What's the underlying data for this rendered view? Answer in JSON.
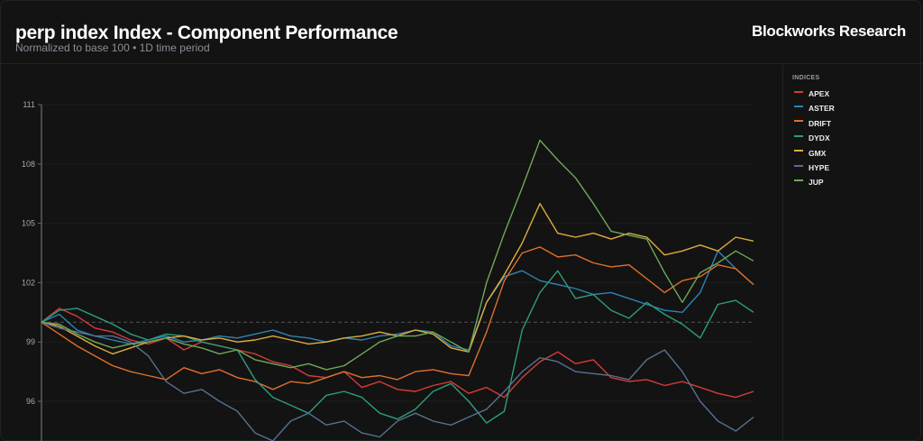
{
  "header": {
    "title": "perp index Index - Component Performance",
    "subtitle": "Normalized to base 100 • 1D time period",
    "brand": "Blockworks Research"
  },
  "legend": {
    "title": "INDICES",
    "items": [
      {
        "label": "APEX",
        "color": "#d63b3b"
      },
      {
        "label": "ASTER",
        "color": "#2f84b4"
      },
      {
        "label": "DRIFT",
        "color": "#e0702a"
      },
      {
        "label": "DYDX",
        "color": "#2e9e7a"
      },
      {
        "label": "GMX",
        "color": "#e0ac3c"
      },
      {
        "label": "HYPE",
        "color": "#56718f"
      },
      {
        "label": "JUP",
        "color": "#6ea85a"
      }
    ]
  },
  "chart_data": {
    "type": "line",
    "title": "perp index Index - Component Performance",
    "subtitle": "Normalized to base 100 • 1D time period",
    "xlabel": "",
    "ylabel": "",
    "yticks": [
      96,
      99,
      102,
      105,
      108,
      111
    ],
    "ylim": [
      93.8,
      111
    ],
    "baseline": 100,
    "grid": true,
    "legend_position": "right",
    "x": [
      0,
      1,
      2,
      3,
      4,
      5,
      6,
      7,
      8,
      9,
      10,
      11,
      12,
      13,
      14,
      15,
      16,
      17,
      18,
      19,
      20,
      21,
      22,
      23,
      24,
      25,
      26,
      27,
      28,
      29,
      30,
      31,
      32,
      33,
      34,
      35,
      36,
      37,
      38,
      39,
      40
    ],
    "series": [
      {
        "name": "APEX",
        "color": "#d63b3b",
        "values": [
          100,
          100.7,
          100.3,
          99.7,
          99.5,
          99.1,
          98.9,
          99.2,
          98.6,
          99.0,
          98.8,
          98.6,
          98.4,
          98.0,
          97.8,
          97.3,
          97.2,
          97.5,
          96.7,
          97.0,
          96.6,
          96.5,
          96.8,
          97.0,
          96.4,
          96.7,
          96.2,
          97.2,
          98.0,
          98.5,
          97.9,
          98.1,
          97.2,
          97.0,
          97.1,
          96.8,
          97.0,
          96.7,
          96.4,
          96.2,
          96.5
        ]
      },
      {
        "name": "ASTER",
        "color": "#2f84b4",
        "values": [
          100,
          100.4,
          99.6,
          99.3,
          99.1,
          98.9,
          99.1,
          99.3,
          99.0,
          99.1,
          99.3,
          99.2,
          99.4,
          99.6,
          99.3,
          99.2,
          99.0,
          99.2,
          99.1,
          99.3,
          99.4,
          99.6,
          99.5,
          98.8,
          98.6,
          101.0,
          102.3,
          102.6,
          102.1,
          101.9,
          101.7,
          101.4,
          101.5,
          101.2,
          100.9,
          100.6,
          100.5,
          101.5,
          103.6,
          102.7,
          101.9
        ]
      },
      {
        "name": "DRIFT",
        "color": "#e0702a",
        "values": [
          100,
          99.4,
          98.8,
          98.3,
          97.8,
          97.5,
          97.3,
          97.1,
          97.7,
          97.4,
          97.6,
          97.2,
          97.0,
          96.6,
          97.0,
          96.9,
          97.2,
          97.5,
          97.2,
          97.3,
          97.1,
          97.5,
          97.6,
          97.4,
          97.3,
          99.5,
          102.1,
          103.5,
          103.8,
          103.3,
          103.4,
          103.0,
          102.8,
          102.9,
          102.2,
          101.5,
          102.1,
          102.3,
          102.9,
          102.7,
          101.9
        ]
      },
      {
        "name": "DYDX",
        "color": "#2e9e7a",
        "values": [
          100,
          100.6,
          100.7,
          100.3,
          99.9,
          99.4,
          99.1,
          99.4,
          99.3,
          99.0,
          98.8,
          98.6,
          97.1,
          96.2,
          95.8,
          95.4,
          96.3,
          96.5,
          96.2,
          95.4,
          95.1,
          95.6,
          96.5,
          96.9,
          96.0,
          94.9,
          95.5,
          99.6,
          101.5,
          102.6,
          101.2,
          101.4,
          100.6,
          100.2,
          101.0,
          100.4,
          99.9,
          99.2,
          100.9,
          101.1,
          100.5
        ]
      },
      {
        "name": "GMX",
        "color": "#e0ac3c",
        "values": [
          100,
          99.8,
          99.3,
          98.8,
          98.4,
          98.7,
          99.0,
          99.2,
          99.3,
          99.1,
          99.2,
          99.0,
          99.1,
          99.3,
          99.1,
          98.9,
          99.0,
          99.2,
          99.3,
          99.5,
          99.3,
          99.6,
          99.4,
          98.7,
          98.5,
          101.0,
          102.4,
          104.0,
          106.0,
          104.5,
          104.3,
          104.5,
          104.2,
          104.5,
          104.3,
          103.4,
          103.6,
          103.9,
          103.6,
          104.3,
          104.1
        ]
      },
      {
        "name": "HYPE",
        "color": "#56718f",
        "values": [
          100,
          99.7,
          99.5,
          99.3,
          99.3,
          99.0,
          98.3,
          97.0,
          96.4,
          96.6,
          96.0,
          95.5,
          94.4,
          94.0,
          95.0,
          95.4,
          94.8,
          95.0,
          94.4,
          94.2,
          95.0,
          95.4,
          95.0,
          94.8,
          95.2,
          95.6,
          96.5,
          97.5,
          98.2,
          98.0,
          97.5,
          97.4,
          97.3,
          97.1,
          98.1,
          98.6,
          97.5,
          96.0,
          95.0,
          94.5,
          95.2
        ]
      },
      {
        "name": "JUP",
        "color": "#6ea85a",
        "values": [
          100,
          99.9,
          99.4,
          99.0,
          98.7,
          98.9,
          99.0,
          99.2,
          98.9,
          98.7,
          98.4,
          98.6,
          98.1,
          97.9,
          97.7,
          97.9,
          97.6,
          97.8,
          98.4,
          99.0,
          99.3,
          99.3,
          99.5,
          99.0,
          98.5,
          102.0,
          104.5,
          106.8,
          109.2,
          108.2,
          107.3,
          106.0,
          104.6,
          104.4,
          104.2,
          102.5,
          101.0,
          102.5,
          103.0,
          103.6,
          103.1
        ]
      }
    ]
  }
}
